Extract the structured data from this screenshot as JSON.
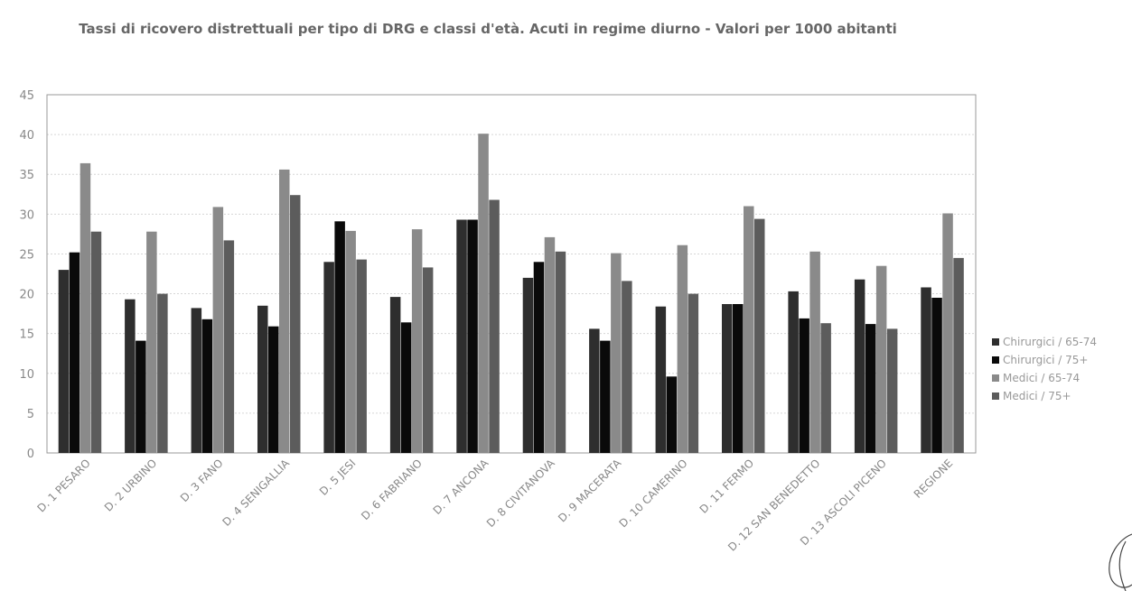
{
  "chart_data": {
    "type": "bar",
    "title": "Tassi di ricovero distrettuali per tipo di DRG e classi d'età. Acuti in regime diurno - Valori per 1000 abitanti",
    "xlabel": "",
    "ylabel": "",
    "ylim": [
      0,
      45
    ],
    "yticks": [
      0,
      5,
      10,
      15,
      20,
      25,
      30,
      35,
      40,
      45
    ],
    "grid": true,
    "legend_position": "right",
    "categories": [
      "D. 1 PESARO",
      "D. 2 URBINO",
      "D. 3 FANO",
      "D. 4 SENIGALLIA",
      "D. 5 JESI",
      "D. 6 FABRIANO",
      "D. 7 ANCONA",
      "D. 8 CIVITANOVA",
      "D. 9 MACERATA",
      "D. 10 CAMERINO",
      "D. 11 FERMO",
      "D. 12 SAN BENEDETTO",
      "D. 13 ASCOLI PICENO",
      "REGIONE"
    ],
    "series": [
      {
        "name": "Chirurgici / 65-74",
        "color": "#2e2e2e",
        "values": [
          23.0,
          19.3,
          18.2,
          18.5,
          24.0,
          19.6,
          29.3,
          22.0,
          15.6,
          18.4,
          18.7,
          20.3,
          21.8,
          20.8
        ]
      },
      {
        "name": "Chirurgici / 75+",
        "color": "#0a0a0a",
        "values": [
          25.2,
          14.1,
          16.8,
          15.9,
          29.1,
          16.4,
          29.3,
          24.0,
          14.1,
          9.6,
          18.7,
          16.9,
          16.2,
          19.5
        ]
      },
      {
        "name": "Medici / 65-74",
        "color": "#8a8a8a",
        "values": [
          36.4,
          27.8,
          30.9,
          35.6,
          27.9,
          28.1,
          40.1,
          27.1,
          25.1,
          26.1,
          31.0,
          25.3,
          23.5,
          30.1
        ]
      },
      {
        "name": "Medici / 75+",
        "color": "#5c5c5c",
        "values": [
          27.8,
          20.0,
          26.7,
          32.4,
          24.3,
          23.3,
          31.8,
          25.3,
          21.6,
          20.0,
          29.4,
          16.3,
          15.6,
          24.5
        ]
      }
    ]
  }
}
